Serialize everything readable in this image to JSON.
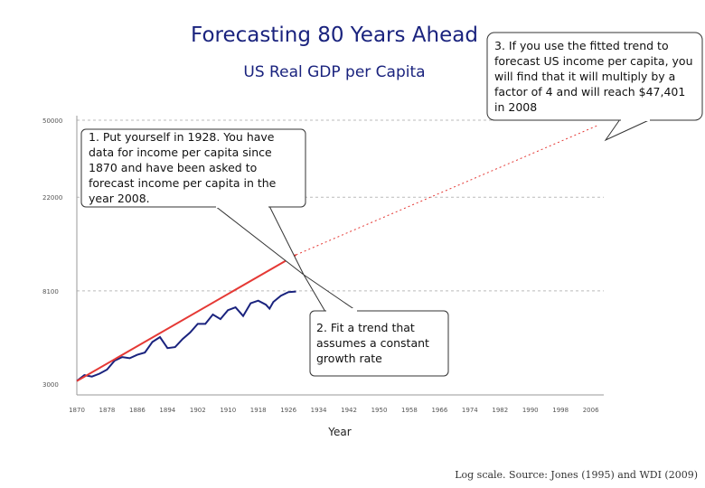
{
  "title": "Forecasting 80 Years Ahead",
  "subtitle": "US Real GDP per Capita",
  "callouts": {
    "c1": "1. Put yourself in 1928. You have\ndata for income per capita since\n1870 and have been asked to\nforecast income per capita in the\nyear 2008.",
    "c2": "2. Fit a trend that\nassumes a constant\ngrowth rate",
    "c3": "3. If you use the fitted trend to\nforecast US income per capita, you\nwill find that it will multiply by a\nfactor of 4 and will reach $47,401\nin 2008"
  },
  "source": "Log scale. Source: Jones (1995) and WDI (2009)",
  "colors": {
    "title": "#1a237e",
    "actual": "#1a237e",
    "trend": "#e53935",
    "grid": "#bbbbbb"
  },
  "chart_data": {
    "type": "line",
    "title": "Forecasting 80 Years Ahead",
    "subtitle": "US Real GDP per Capita",
    "xlabel": "Year",
    "ylabel": "",
    "yscale": "log",
    "ylim": [
      3000,
      50000
    ],
    "xlim": [
      1870,
      2008
    ],
    "y_ticks": [
      {
        "value": 3000,
        "label": "3000"
      },
      {
        "value": 8100,
        "label": "8100"
      },
      {
        "value": 22000,
        "label": "22000"
      },
      {
        "value": 50000,
        "label": "50000"
      }
    ],
    "x_ticks": [
      "1870",
      "1878",
      "1886",
      "1894",
      "1902",
      "1910",
      "1918",
      "1926",
      "1934",
      "1942",
      "1950",
      "1958",
      "1966",
      "1974",
      "1982",
      "1990",
      "1998",
      "2006"
    ],
    "grid": "horizontal dashed",
    "series": [
      {
        "type": "actual",
        "x": [
          1870,
          1872,
          1874,
          1876,
          1878,
          1880,
          1882,
          1884,
          1886,
          1888,
          1890,
          1892,
          1894,
          1896,
          1898,
          1900,
          1902,
          1904,
          1906,
          1908,
          1910,
          1912,
          1914,
          1916,
          1918,
          1920,
          1921,
          1922,
          1924,
          1926,
          1928
        ],
        "y": [
          3100,
          3300,
          3250,
          3350,
          3500,
          3850,
          4000,
          3950,
          4100,
          4200,
          4700,
          4950,
          4400,
          4450,
          4850,
          5200,
          5700,
          5700,
          6300,
          6000,
          6600,
          6800,
          6200,
          7100,
          7300,
          7000,
          6700,
          7200,
          7700,
          8000,
          8050
        ]
      },
      {
        "type": "trend",
        "x": [
          1870,
          1928
        ],
        "y": [
          3100,
          11900
        ]
      },
      {
        "type": "forecast",
        "x": [
          1928,
          2008
        ],
        "y": [
          11900,
          47401
        ]
      }
    ]
  }
}
